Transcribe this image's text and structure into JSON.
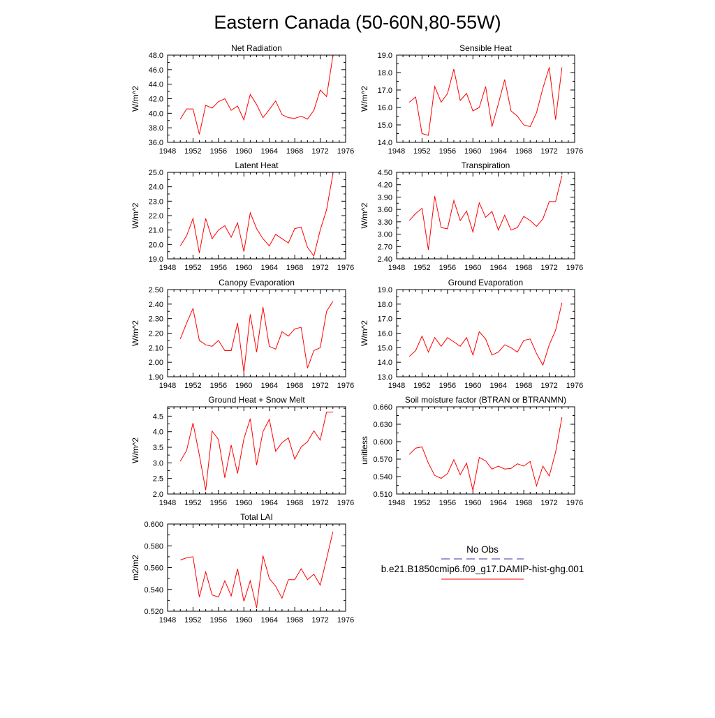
{
  "title": "Eastern Canada (50-60N,80-55W)",
  "legend": {
    "obs_label": "No Obs",
    "model_label": "b.e21.B1850cmip6.f09_g17.DAMIP-hist-ghg.001",
    "obs_color": "#3333aa",
    "model_color": "#ff0000"
  },
  "chart_data": [
    {
      "type": "line",
      "title": "Net Radiation",
      "ylabel": "W/m^2",
      "xlim": [
        1948,
        1976
      ],
      "ylim": [
        36,
        48
      ],
      "xticks": [
        "1948",
        "1952",
        "1956",
        "1960",
        "1964",
        "1968",
        "1972",
        "1976"
      ],
      "yticks": [
        "36.0",
        "38.0",
        "40.0",
        "42.0",
        "44.0",
        "46.0",
        "48.0"
      ],
      "series": [
        {
          "x": [
            1950,
            1951,
            1952,
            1953,
            1954,
            1955,
            1956,
            1957,
            1958,
            1959,
            1960,
            1961,
            1962,
            1963,
            1964,
            1965,
            1966,
            1967,
            1968,
            1969,
            1970,
            1971,
            1972,
            1973,
            1974
          ],
          "y": [
            39.2,
            40.6,
            40.6,
            37.1,
            41.1,
            40.7,
            41.6,
            42.0,
            40.4,
            41.0,
            39.1,
            42.6,
            41.2,
            39.4,
            40.5,
            41.7,
            39.8,
            39.4,
            39.3,
            39.6,
            39.2,
            40.4,
            43.2,
            42.3,
            47.9
          ],
          "color": "#ff0000"
        }
      ]
    },
    {
      "type": "line",
      "title": "Sensible Heat",
      "ylabel": "W/m^2",
      "xlim": [
        1948,
        1976
      ],
      "ylim": [
        14,
        19
      ],
      "xticks": [
        "1948",
        "1952",
        "1956",
        "1960",
        "1964",
        "1968",
        "1972",
        "1976"
      ],
      "yticks": [
        "14.0",
        "15.0",
        "16.0",
        "17.0",
        "18.0",
        "19.0"
      ],
      "series": [
        {
          "x": [
            1950,
            1951,
            1952,
            1953,
            1954,
            1955,
            1956,
            1957,
            1958,
            1959,
            1960,
            1961,
            1962,
            1963,
            1964,
            1965,
            1966,
            1967,
            1968,
            1969,
            1970,
            1971,
            1972,
            1973,
            1974
          ],
          "y": [
            16.3,
            16.6,
            14.5,
            14.4,
            17.2,
            16.3,
            16.8,
            18.2,
            16.4,
            16.8,
            15.8,
            16.0,
            17.2,
            14.9,
            16.2,
            17.6,
            15.8,
            15.5,
            15.0,
            14.9,
            15.7,
            17.1,
            18.3,
            15.3,
            18.3
          ],
          "color": "#ff0000"
        }
      ]
    },
    {
      "type": "line",
      "title": "Latent Heat",
      "ylabel": "W/m^2",
      "xlim": [
        1948,
        1976
      ],
      "ylim": [
        19,
        25
      ],
      "xticks": [
        "1948",
        "1952",
        "1956",
        "1960",
        "1964",
        "1968",
        "1972",
        "1976"
      ],
      "yticks": [
        "19.0",
        "20.0",
        "21.0",
        "22.0",
        "23.0",
        "24.0",
        "25.0"
      ],
      "series": [
        {
          "x": [
            1950,
            1951,
            1952,
            1953,
            1954,
            1955,
            1956,
            1957,
            1958,
            1959,
            1960,
            1961,
            1962,
            1963,
            1964,
            1965,
            1966,
            1967,
            1968,
            1969,
            1970,
            1971,
            1972,
            1973,
            1974
          ],
          "y": [
            19.9,
            20.6,
            21.8,
            19.4,
            21.8,
            20.4,
            21.0,
            21.3,
            20.5,
            21.5,
            19.5,
            22.2,
            21.1,
            20.4,
            19.9,
            20.7,
            20.4,
            20.1,
            21.1,
            21.2,
            19.8,
            19.2,
            21.0,
            22.4,
            24.9
          ],
          "color": "#ff0000"
        }
      ]
    },
    {
      "type": "line",
      "title": "Transpiration",
      "ylabel": "W/m^2",
      "xlim": [
        1948,
        1976
      ],
      "ylim": [
        2.4,
        4.5
      ],
      "xticks": [
        "1948",
        "1952",
        "1956",
        "1960",
        "1964",
        "1968",
        "1972",
        "1976"
      ],
      "yticks": [
        "2.40",
        "2.70",
        "3.00",
        "3.30",
        "3.60",
        "3.90",
        "4.20",
        "4.50"
      ],
      "series": [
        {
          "x": [
            1950,
            1951,
            1952,
            1953,
            1954,
            1955,
            1956,
            1957,
            1958,
            1959,
            1960,
            1961,
            1962,
            1963,
            1964,
            1965,
            1966,
            1967,
            1968,
            1969,
            1970,
            1971,
            1972,
            1973,
            1974
          ],
          "y": [
            3.33,
            3.5,
            3.63,
            2.62,
            3.92,
            3.16,
            3.13,
            3.82,
            3.33,
            3.56,
            3.05,
            3.76,
            3.41,
            3.55,
            3.1,
            3.46,
            3.1,
            3.16,
            3.43,
            3.33,
            3.19,
            3.37,
            3.79,
            3.79,
            4.42
          ],
          "color": "#ff0000"
        }
      ]
    },
    {
      "type": "line",
      "title": "Canopy Evaporation",
      "ylabel": "W/m^2",
      "xlim": [
        1948,
        1976
      ],
      "ylim": [
        1.9,
        2.5
      ],
      "xticks": [
        "1948",
        "1952",
        "1956",
        "1960",
        "1964",
        "1968",
        "1972",
        "1976"
      ],
      "yticks": [
        "1.90",
        "2.00",
        "2.10",
        "2.20",
        "2.30",
        "2.40",
        "2.50"
      ],
      "series": [
        {
          "x": [
            1950,
            1951,
            1952,
            1953,
            1954,
            1955,
            1956,
            1957,
            1958,
            1959,
            1960,
            1961,
            1962,
            1963,
            1964,
            1965,
            1966,
            1967,
            1968,
            1969,
            1970,
            1971,
            1972,
            1973,
            1974
          ],
          "y": [
            2.16,
            2.27,
            2.37,
            2.15,
            2.12,
            2.11,
            2.15,
            2.08,
            2.08,
            2.27,
            1.93,
            2.33,
            2.07,
            2.38,
            2.11,
            2.09,
            2.21,
            2.18,
            2.23,
            2.24,
            1.96,
            2.08,
            2.1,
            2.35,
            2.42
          ],
          "color": "#ff0000"
        }
      ]
    },
    {
      "type": "line",
      "title": "Ground Evaporation",
      "ylabel": "W/m^2",
      "xlim": [
        1948,
        1976
      ],
      "ylim": [
        13,
        19
      ],
      "xticks": [
        "1948",
        "1952",
        "1956",
        "1960",
        "1964",
        "1968",
        "1972",
        "1976"
      ],
      "yticks": [
        "13.0",
        "14.0",
        "15.0",
        "16.0",
        "17.0",
        "18.0",
        "19.0"
      ],
      "series": [
        {
          "x": [
            1950,
            1951,
            1952,
            1953,
            1954,
            1955,
            1956,
            1957,
            1958,
            1959,
            1960,
            1961,
            1962,
            1963,
            1964,
            1965,
            1966,
            1967,
            1968,
            1969,
            1970,
            1971,
            1972,
            1973,
            1974
          ],
          "y": [
            14.4,
            14.8,
            15.8,
            14.7,
            15.7,
            15.1,
            15.7,
            15.4,
            15.1,
            15.7,
            14.5,
            16.1,
            15.6,
            14.5,
            14.7,
            15.2,
            15.0,
            14.7,
            15.5,
            15.6,
            14.6,
            13.8,
            15.2,
            16.2,
            18.1
          ],
          "color": "#ff0000"
        }
      ]
    },
    {
      "type": "line",
      "title": "Ground Heat + Snow Melt",
      "ylabel": "W/m^2",
      "xlim": [
        1948,
        1976
      ],
      "ylim": [
        2.0,
        4.8
      ],
      "xticks": [
        "1948",
        "1952",
        "1956",
        "1960",
        "1964",
        "1968",
        "1972",
        "1976"
      ],
      "yticks": [
        "2.0",
        "2.5",
        "3.0",
        "3.5",
        "4.0",
        "4.5"
      ],
      "series": [
        {
          "x": [
            1950,
            1951,
            1952,
            1953,
            1954,
            1955,
            1956,
            1957,
            1958,
            1959,
            1960,
            1961,
            1962,
            1963,
            1964,
            1965,
            1966,
            1967,
            1968,
            1969,
            1970,
            1971,
            1972,
            1973,
            1974
          ],
          "y": [
            3.05,
            3.4,
            4.28,
            3.25,
            2.12,
            4.02,
            3.75,
            2.52,
            3.57,
            2.66,
            3.77,
            4.42,
            2.93,
            4.0,
            4.4,
            3.37,
            3.65,
            3.8,
            3.12,
            3.51,
            3.68,
            4.03,
            3.73,
            4.63,
            4.63
          ],
          "color": "#ff0000"
        }
      ]
    },
    {
      "type": "line",
      "title": "Soil moisture factor (BTRAN or BTRANMN)",
      "ylabel": "unitless",
      "xlim": [
        1948,
        1976
      ],
      "ylim": [
        0.51,
        0.66
      ],
      "xticks": [
        "1948",
        "1952",
        "1956",
        "1960",
        "1964",
        "1968",
        "1972",
        "1976"
      ],
      "yticks": [
        "0.510",
        "0.540",
        "0.570",
        "0.600",
        "0.630",
        "0.660"
      ],
      "series": [
        {
          "x": [
            1950,
            1951,
            1952,
            1953,
            1954,
            1955,
            1956,
            1957,
            1958,
            1959,
            1960,
            1961,
            1962,
            1963,
            1964,
            1965,
            1966,
            1967,
            1968,
            1969,
            1970,
            1971,
            1972,
            1973,
            1974
          ],
          "y": [
            0.578,
            0.589,
            0.591,
            0.563,
            0.542,
            0.537,
            0.545,
            0.569,
            0.543,
            0.563,
            0.516,
            0.573,
            0.567,
            0.553,
            0.558,
            0.553,
            0.554,
            0.562,
            0.558,
            0.566,
            0.524,
            0.558,
            0.541,
            0.582,
            0.642
          ],
          "color": "#ff0000"
        }
      ]
    },
    {
      "type": "line",
      "title": "Total LAI",
      "ylabel": "m2/m2",
      "xlim": [
        1948,
        1976
      ],
      "ylim": [
        0.52,
        0.6
      ],
      "xticks": [
        "1948",
        "1952",
        "1956",
        "1960",
        "1964",
        "1968",
        "1972",
        "1976"
      ],
      "yticks": [
        "0.520",
        "0.540",
        "0.560",
        "0.580",
        "0.600"
      ],
      "series": [
        {
          "x": [
            1950,
            1951,
            1952,
            1953,
            1954,
            1955,
            1956,
            1957,
            1958,
            1959,
            1960,
            1961,
            1962,
            1963,
            1964,
            1965,
            1966,
            1967,
            1968,
            1969,
            1970,
            1971,
            1972,
            1973,
            1974
          ],
          "y": [
            0.567,
            0.569,
            0.57,
            0.533,
            0.556,
            0.535,
            0.533,
            0.548,
            0.534,
            0.559,
            0.529,
            0.548,
            0.523,
            0.571,
            0.55,
            0.543,
            0.532,
            0.549,
            0.549,
            0.559,
            0.549,
            0.554,
            0.544,
            0.568,
            0.593
          ],
          "color": "#ff0000"
        }
      ]
    }
  ]
}
